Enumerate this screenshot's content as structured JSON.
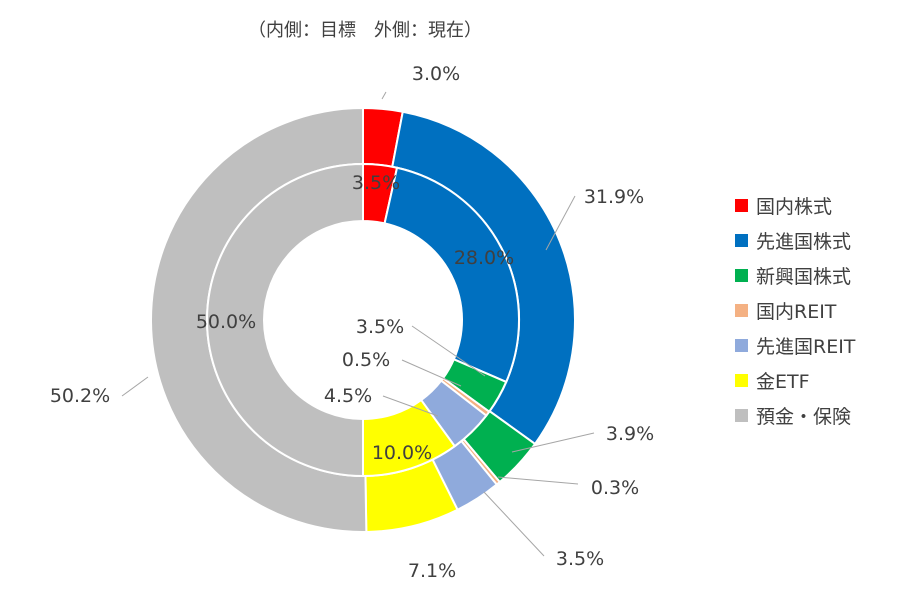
{
  "chart_data": {
    "type": "pie",
    "title": "（内側：目標　外側：現在）",
    "categories": [
      "国内株式",
      "先進国株式",
      "新興国株式",
      "国内REIT",
      "先進国REIT",
      "金ETF",
      "預金・保険"
    ],
    "colors": [
      "#ff0000",
      "#0070c0",
      "#00b050",
      "#f4b183",
      "#8faadc",
      "#ffff00",
      "#bfbfbf"
    ],
    "series": [
      {
        "name": "外側：現在",
        "ring": "outer",
        "values": [
          3.0,
          31.9,
          3.9,
          0.3,
          3.5,
          7.1,
          50.2
        ],
        "labels": [
          "3.0%",
          "31.9%",
          "3.9%",
          "0.3%",
          "3.5%",
          "7.1%",
          "50.2%"
        ]
      },
      {
        "name": "内側：目標",
        "ring": "inner",
        "values": [
          3.5,
          28.0,
          3.5,
          0.5,
          4.5,
          10.0,
          50.0
        ],
        "labels": [
          "3.5%",
          "28.0%",
          "3.5%",
          "0.5%",
          "4.5%",
          "10.0%",
          "50.0%"
        ]
      }
    ],
    "legend_position": "right"
  }
}
